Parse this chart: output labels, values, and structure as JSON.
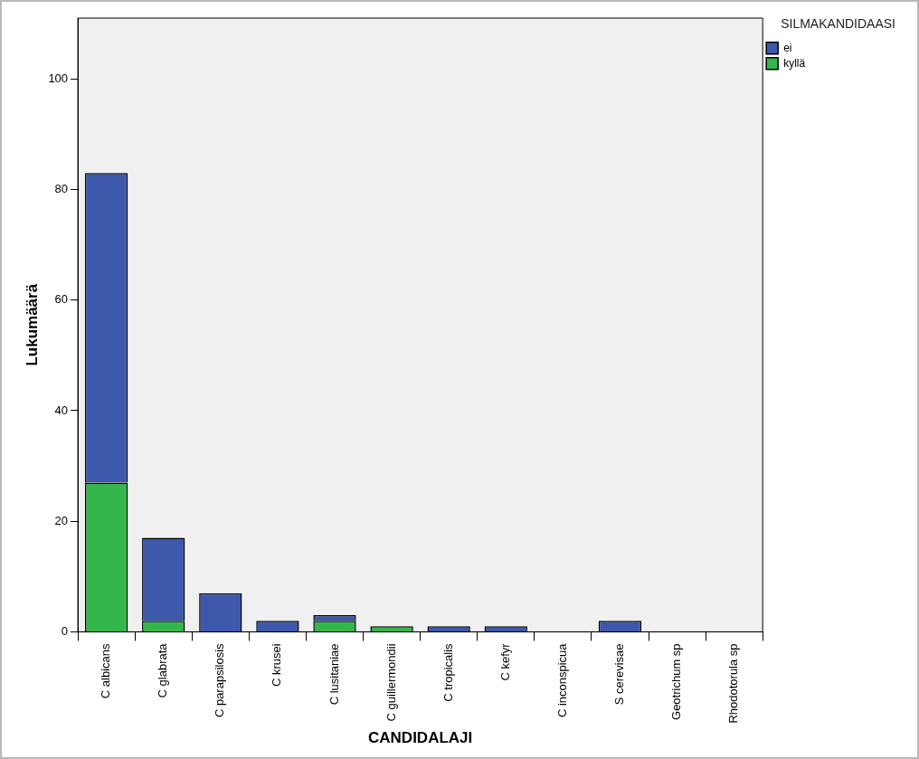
{
  "chart_data": {
    "type": "bar",
    "stacked": true,
    "xlabel": "CANDIDALAJI",
    "ylabel": "Lukumäärä",
    "legend_title": "SILMÄKANDIDAASI",
    "legend": "top right",
    "categories": [
      "C albicans",
      "C glabrata",
      "C parapsilosis",
      "C krusei",
      "C lusitaniae",
      "C guillermondii",
      "C tropicalis",
      "C kefyr",
      "C inconspicua",
      "S cerevisae",
      "Geotrichum sp",
      "Rhodotorula sp"
    ],
    "series": [
      {
        "name": "kyllä",
        "color": "#33b64a",
        "values": [
          27,
          2,
          0,
          0,
          2,
          1,
          0,
          0,
          0,
          0,
          0,
          0
        ]
      },
      {
        "name": "ei",
        "color": "#3e58ac",
        "values": [
          56,
          15,
          7,
          2,
          1,
          0,
          1,
          1,
          0,
          2,
          0,
          0
        ]
      }
    ],
    "ylim": [
      0,
      111
    ],
    "yticks": [
      0,
      20,
      40,
      60,
      80,
      100
    ],
    "grid": false
  }
}
